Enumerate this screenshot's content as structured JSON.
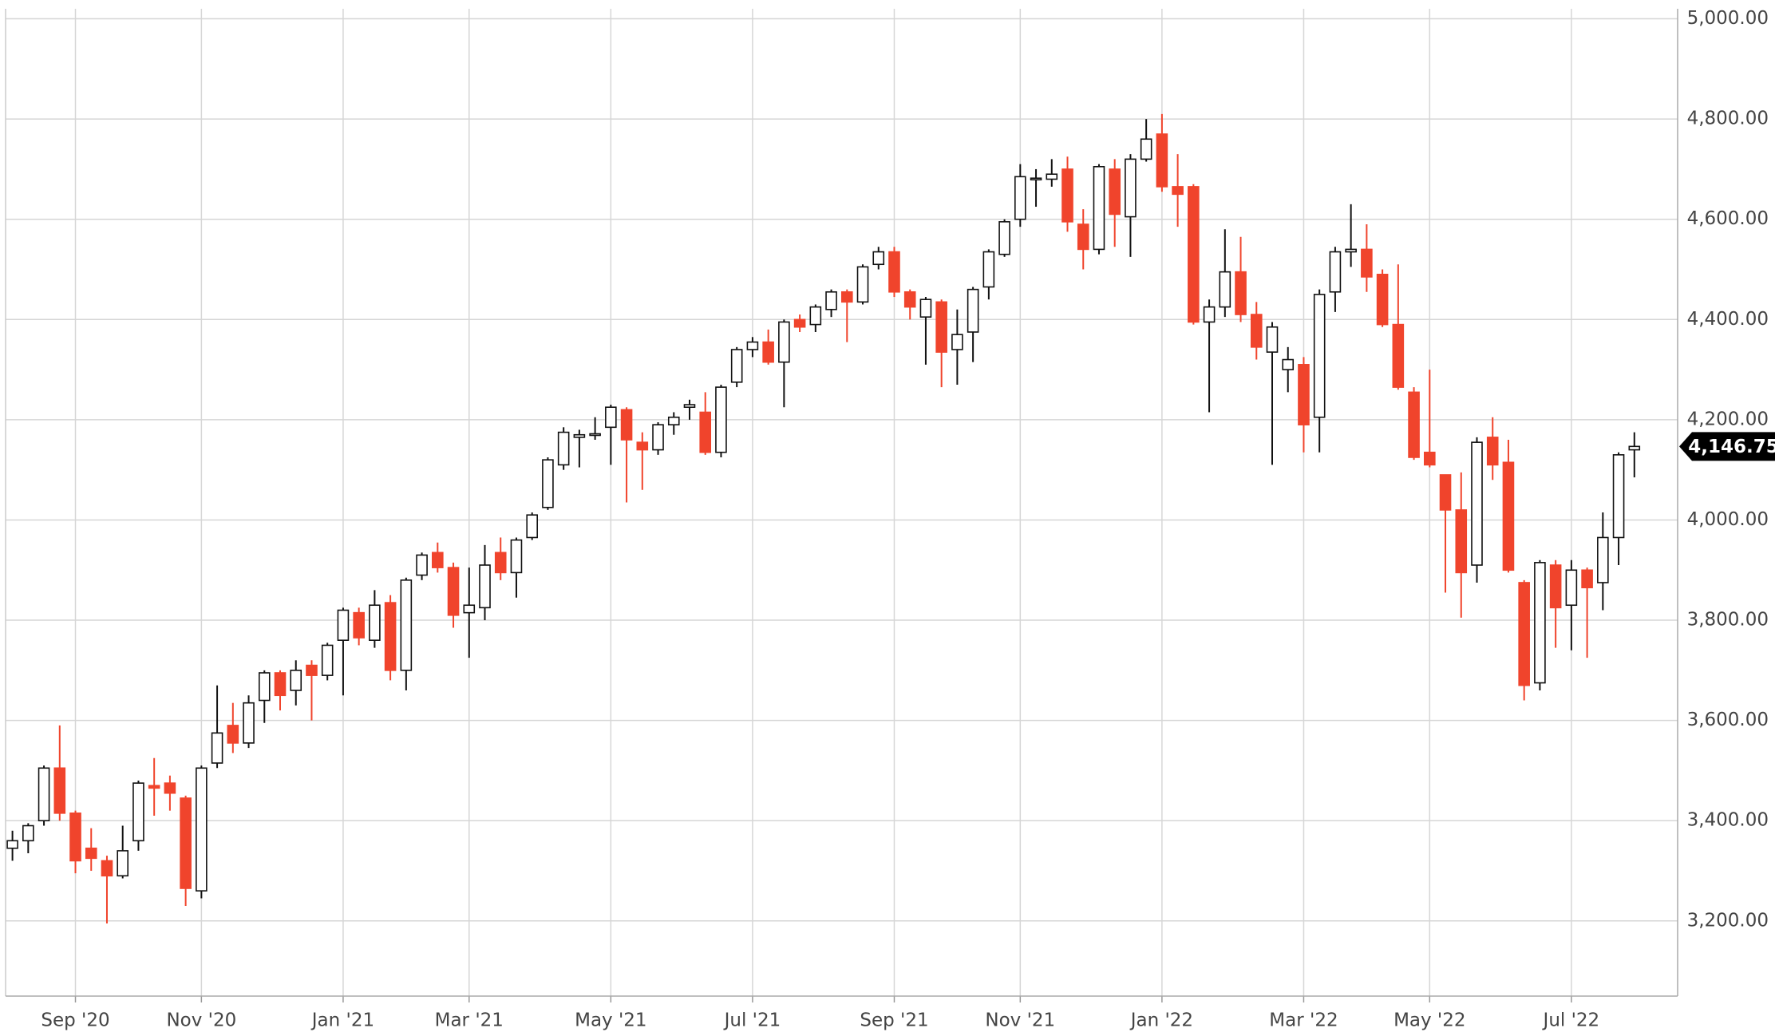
{
  "chart_data": {
    "type": "candlestick",
    "categories": [
      null,
      null,
      null,
      null,
      "Sep '20",
      null,
      null,
      null,
      null,
      null,
      null,
      null,
      "Nov '20",
      null,
      null,
      null,
      null,
      null,
      null,
      null,
      null,
      "Jan '21",
      null,
      null,
      null,
      null,
      null,
      null,
      null,
      "Mar '21",
      null,
      null,
      null,
      null,
      null,
      null,
      null,
      null,
      "May '21",
      null,
      null,
      null,
      null,
      null,
      null,
      null,
      null,
      "Jul '21",
      null,
      null,
      null,
      null,
      null,
      null,
      null,
      null,
      "Sep '21",
      null,
      null,
      null,
      null,
      null,
      null,
      null,
      "Nov '21",
      null,
      null,
      null,
      null,
      null,
      null,
      null,
      null,
      "Jan '22",
      null,
      null,
      null,
      null,
      null,
      null,
      null,
      null,
      "Mar '22",
      null,
      null,
      null,
      null,
      null,
      null,
      null,
      "May '22",
      null,
      null,
      null,
      null,
      null,
      null,
      null,
      null,
      "Jul '22",
      null,
      null,
      null,
      null
    ],
    "open": [
      3345,
      3360,
      3400,
      3505,
      3415,
      3345,
      3320,
      3290,
      3360,
      3470,
      3475,
      3445,
      3260,
      3515,
      3590,
      3555,
      3640,
      3695,
      3660,
      3710,
      3690,
      3760,
      3815,
      3760,
      3835,
      3700,
      3890,
      3935,
      3905,
      3815,
      3825,
      3935,
      3895,
      3965,
      4025,
      4110,
      4165,
      4170,
      4185,
      4220,
      4155,
      4140,
      4190,
      4225,
      4215,
      4135,
      4275,
      4340,
      4355,
      4315,
      4400,
      4390,
      4420,
      4455,
      4435,
      4510,
      4535,
      4455,
      4405,
      4435,
      4340,
      4375,
      4465,
      4530,
      4600,
      4680,
      4680,
      4700,
      4590,
      4540,
      4700,
      4605,
      4720,
      4770,
      4665,
      4665,
      4395,
      4425,
      4495,
      4410,
      4335,
      4300,
      4310,
      4205,
      4455,
      4535,
      4540,
      4490,
      4390,
      4255,
      4135,
      4090,
      4020,
      3910,
      4165,
      4115,
      3875,
      3675,
      3910,
      3830,
      3900,
      3875,
      3965,
      4140
    ],
    "high": [
      3380,
      3395,
      3510,
      3590,
      3420,
      3385,
      3330,
      3390,
      3480,
      3525,
      3490,
      3450,
      3510,
      3670,
      3635,
      3650,
      3700,
      3700,
      3720,
      3720,
      3755,
      3825,
      3825,
      3860,
      3850,
      3885,
      3935,
      3955,
      3915,
      3905,
      3950,
      3965,
      3965,
      4015,
      4125,
      4185,
      4180,
      4205,
      4230,
      4225,
      4175,
      4195,
      4215,
      4240,
      4255,
      4270,
      4345,
      4365,
      4380,
      4400,
      4410,
      4430,
      4460,
      4460,
      4510,
      4545,
      4545,
      4460,
      4445,
      4440,
      4420,
      4465,
      4540,
      4600,
      4710,
      4700,
      4720,
      4725,
      4620,
      4710,
      4720,
      4730,
      4800,
      4810,
      4730,
      4670,
      4440,
      4580,
      4565,
      4435,
      4395,
      4345,
      4325,
      4460,
      4545,
      4630,
      4590,
      4500,
      4510,
      4265,
      4300,
      4090,
      4095,
      4165,
      4205,
      4160,
      3880,
      3920,
      3920,
      3920,
      3905,
      4015,
      4135,
      4175
    ],
    "low": [
      3320,
      3335,
      3390,
      3400,
      3295,
      3300,
      3195,
      3285,
      3340,
      3410,
      3420,
      3230,
      3245,
      3505,
      3535,
      3545,
      3595,
      3620,
      3630,
      3600,
      3680,
      3650,
      3750,
      3745,
      3680,
      3660,
      3880,
      3895,
      3785,
      3725,
      3800,
      3880,
      3845,
      3960,
      4020,
      4100,
      4105,
      4160,
      4110,
      4035,
      4060,
      4130,
      4170,
      4200,
      4130,
      4125,
      4265,
      4325,
      4310,
      4225,
      4375,
      4375,
      4405,
      4355,
      4430,
      4500,
      4445,
      4400,
      4310,
      4265,
      4270,
      4315,
      4440,
      4525,
      4585,
      4625,
      4665,
      4575,
      4500,
      4530,
      4545,
      4525,
      4715,
      4655,
      4585,
      4390,
      4215,
      4405,
      4395,
      4320,
      4110,
      4255,
      4135,
      4135,
      4415,
      4505,
      4455,
      4385,
      4260,
      4120,
      4105,
      3855,
      3805,
      3875,
      4080,
      3895,
      3640,
      3660,
      3745,
      3740,
      3725,
      3820,
      3910,
      4085
    ],
    "close": [
      3360,
      3390,
      3505,
      3415,
      3320,
      3325,
      3290,
      3340,
      3475,
      3465,
      3455,
      3265,
      3505,
      3575,
      3555,
      3635,
      3695,
      3650,
      3700,
      3690,
      3750,
      3820,
      3765,
      3830,
      3700,
      3880,
      3930,
      3905,
      3810,
      3830,
      3910,
      3895,
      3960,
      4010,
      4120,
      4175,
      4170,
      4172,
      4225,
      4160,
      4140,
      4190,
      4205,
      4230,
      4135,
      4265,
      4340,
      4355,
      4315,
      4395,
      4385,
      4425,
      4455,
      4435,
      4505,
      4535,
      4455,
      4425,
      4440,
      4335,
      4370,
      4460,
      4535,
      4595,
      4685,
      4682,
      4690,
      4595,
      4540,
      4705,
      4610,
      4720,
      4760,
      4665,
      4650,
      4395,
      4425,
      4495,
      4410,
      4345,
      4385,
      4320,
      4190,
      4450,
      4535,
      4540,
      4485,
      4390,
      4265,
      4125,
      4110,
      4020,
      3895,
      4155,
      4110,
      3900,
      3670,
      3915,
      3825,
      3900,
      3865,
      3965,
      4130,
      4146.75
    ],
    "last_label": "4,146.75",
    "up_color": "#ffffff",
    "down_color": "#f0442c",
    "ylim": [
      3050,
      5020
    ],
    "yticks": [
      {
        "value": 3200,
        "label": "3,200.00"
      },
      {
        "value": 3400,
        "label": "3,400.00"
      },
      {
        "value": 3600,
        "label": "3,600.00"
      },
      {
        "value": 3800,
        "label": "3,800.00"
      },
      {
        "value": 4000,
        "label": "4,000.00"
      },
      {
        "value": 4200,
        "label": "4,200.00"
      },
      {
        "value": 4400,
        "label": "4,400.00"
      },
      {
        "value": 4600,
        "label": "4,600.00"
      },
      {
        "value": 4800,
        "label": "4,800.00"
      },
      {
        "value": 5000,
        "label": "5,000.00"
      }
    ],
    "grid": true
  }
}
